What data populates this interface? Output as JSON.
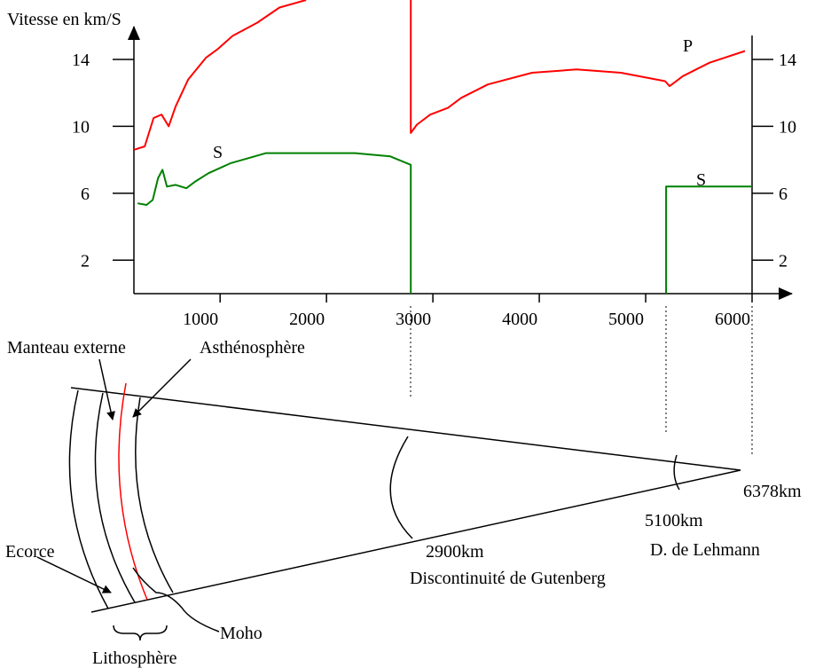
{
  "chart_data": {
    "type": "line",
    "y_label": "Vitesse en km/S",
    "xlim": [
      190,
      6400
    ],
    "ylim": [
      0,
      17.55
    ],
    "xticks": [
      1000,
      2000,
      3000,
      4000,
      5000,
      6000
    ],
    "yticks": [
      2,
      6,
      10,
      14
    ],
    "series": [
      {
        "name": "P",
        "color": "#ff0000",
        "x": [
          192,
          292,
          375,
          450,
          517,
          583,
          700,
          867,
          975,
          1117,
          1350,
          1558,
          1808,
          null,
          2792,
          2792,
          2850,
          2975,
          3142,
          3267,
          3517,
          3933,
          4350,
          4767,
          5183,
          5225,
          5350,
          5600,
          5933
        ],
        "values": [
          8.6,
          8.8,
          10.5,
          10.7,
          10.0,
          11.2,
          12.8,
          14.1,
          14.6,
          15.4,
          16.2,
          17.1,
          17.55,
          null,
          17.55,
          9.6,
          10.1,
          10.7,
          11.1,
          11.7,
          12.5,
          13.2,
          13.4,
          13.2,
          12.7,
          12.4,
          13.0,
          13.8,
          14.5
        ]
      },
      {
        "name": "S",
        "color": "#008000",
        "x": [
          225,
          308,
          367,
          417,
          458,
          500,
          583,
          683,
          767,
          892,
          1100,
          1433,
          2267,
          2600,
          2792,
          2792
        ],
        "values": [
          5.4,
          5.3,
          5.6,
          6.9,
          7.4,
          6.4,
          6.5,
          6.3,
          6.7,
          7.2,
          7.8,
          8.4,
          8.4,
          8.2,
          7.7,
          0
        ]
      },
      {
        "name": "S",
        "color": "#008000",
        "x": [
          5192,
          5192,
          6000
        ],
        "values": [
          0,
          6.4,
          6.4
        ]
      }
    ]
  },
  "diagram": {
    "labels": {
      "outer_mantle": "Manteau externe",
      "asthenosphere": "Asthénosphère",
      "crust": "Ecorce",
      "moho": "Moho",
      "lithosphere": "Lithosphère",
      "gutenberg_depth": "2900km",
      "gutenberg_name": "Discontinuité de Gutenberg",
      "lehmann_depth": "5100km",
      "lehmann_name": "D. de Lehmann",
      "center_depth": "6378km"
    }
  }
}
